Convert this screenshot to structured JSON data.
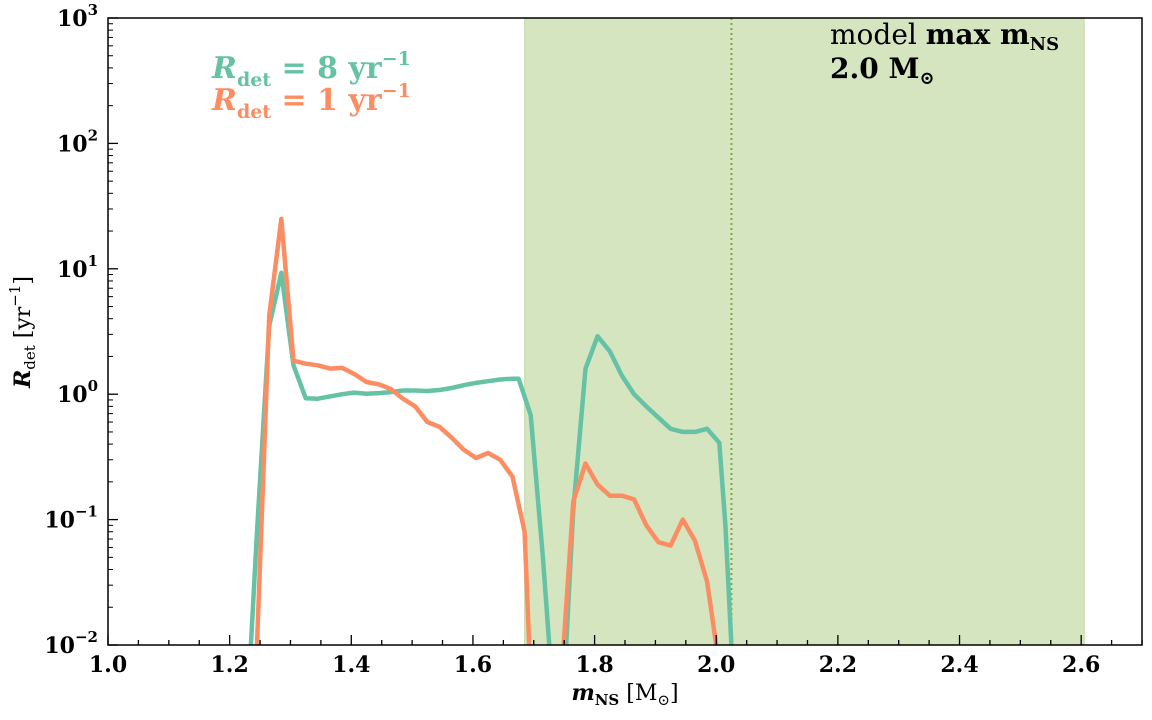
{
  "chart_data": {
    "type": "line",
    "xlabel": "m_NS [M_⊙]",
    "ylabel": "R_det [yr^-1]",
    "xlim": [
      1.0,
      2.7
    ],
    "ylim_log10": [
      -2,
      3
    ],
    "yscale": "log",
    "x_ticks": [
      "1.0",
      "1.2",
      "1.4",
      "1.6",
      "1.8",
      "2.0",
      "2.2",
      "2.4",
      "2.6"
    ],
    "y_ticks": [
      {
        "base": "10",
        "exp": "3"
      },
      {
        "base": "10",
        "exp": "2"
      },
      {
        "base": "10",
        "exp": "1"
      },
      {
        "base": "10",
        "exp": "0"
      },
      {
        "base": "10",
        "exp": "−1"
      },
      {
        "base": "10",
        "exp": "−2"
      }
    ],
    "shaded_region": {
      "x0": 1.685,
      "x1": 2.605,
      "color": "#d5e5c0"
    },
    "vline": {
      "x": 2.025,
      "color": "#7aa647",
      "style": "dotted"
    },
    "annotation": {
      "line1_normal": "model ",
      "line1_bold": "max m",
      "line1_sub": "NS",
      "line2": "2.0 M",
      "line2_sym": "⊙"
    },
    "legend": [
      {
        "prefix": "R",
        "sub": "det",
        "text": " = 8 yr",
        "sup": "−1",
        "color": "#66c2a5"
      },
      {
        "prefix": "R",
        "sub": "det",
        "text": " = 1 yr",
        "sup": "−1",
        "color": "#fc8d62"
      }
    ],
    "series": [
      {
        "color": "#66c2a5",
        "x": [
          1.235,
          1.245,
          1.265,
          1.285,
          1.305,
          1.325,
          1.345,
          1.365,
          1.385,
          1.405,
          1.425,
          1.445,
          1.465,
          1.485,
          1.505,
          1.525,
          1.545,
          1.565,
          1.585,
          1.605,
          1.625,
          1.645,
          1.665,
          1.675,
          1.695,
          1.715,
          1.73,
          1.75,
          1.765,
          1.785,
          1.805,
          1.825,
          1.845,
          1.865,
          1.885,
          1.905,
          1.925,
          1.945,
          1.965,
          1.985,
          2.005,
          2.015,
          2.025
        ],
        "y": [
          0.01,
          0.08,
          3.5,
          9.3,
          1.7,
          0.93,
          0.92,
          0.96,
          1.0,
          1.03,
          1.01,
          1.02,
          1.04,
          1.07,
          1.07,
          1.06,
          1.08,
          1.12,
          1.18,
          1.23,
          1.27,
          1.31,
          1.33,
          1.33,
          0.68,
          0.05,
          0.005,
          0.005,
          0.12,
          1.6,
          2.9,
          2.2,
          1.4,
          1.0,
          0.8,
          0.65,
          0.53,
          0.5,
          0.5,
          0.53,
          0.41,
          0.09,
          0.01
        ]
      },
      {
        "color": "#fc8d62",
        "x": [
          1.245,
          1.265,
          1.285,
          1.305,
          1.325,
          1.345,
          1.365,
          1.385,
          1.405,
          1.425,
          1.445,
          1.465,
          1.485,
          1.505,
          1.525,
          1.545,
          1.565,
          1.585,
          1.605,
          1.625,
          1.645,
          1.665,
          1.685,
          1.695,
          1.72,
          1.745,
          1.765,
          1.785,
          1.805,
          1.825,
          1.845,
          1.865,
          1.885,
          1.905,
          1.925,
          1.945,
          1.965,
          1.985,
          2.0
        ],
        "y": [
          0.01,
          4.2,
          25.0,
          1.85,
          1.75,
          1.7,
          1.6,
          1.62,
          1.45,
          1.25,
          1.2,
          1.1,
          0.92,
          0.8,
          0.6,
          0.55,
          0.45,
          0.36,
          0.31,
          0.34,
          0.3,
          0.22,
          0.08,
          0.005,
          0.005,
          0.005,
          0.14,
          0.28,
          0.19,
          0.155,
          0.155,
          0.145,
          0.09,
          0.066,
          0.062,
          0.1,
          0.068,
          0.032,
          0.01
        ]
      }
    ]
  }
}
